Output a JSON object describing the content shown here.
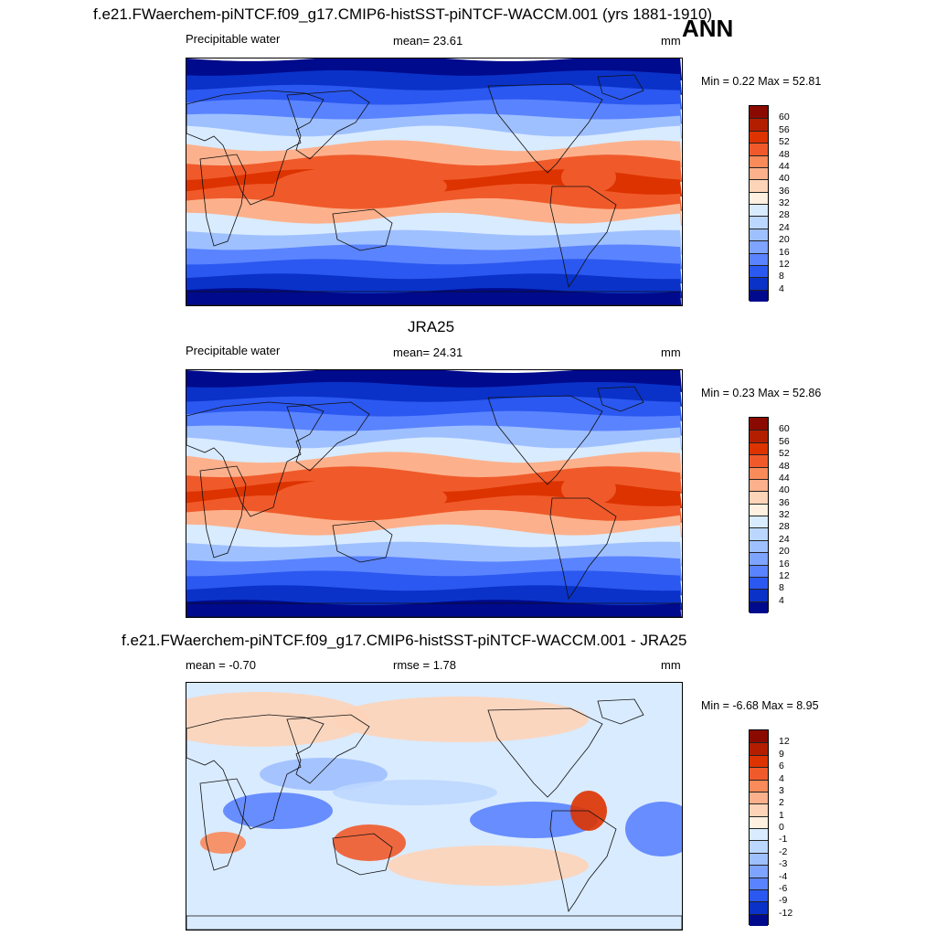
{
  "header": {
    "title": "f.e21.FWaerchem-piNTCF.f09_g17.CMIP6-histSST-piNTCF-WACCM.001 (yrs 1881-1910)",
    "season": "ANN"
  },
  "panels": [
    {
      "label_left": "Precipitable water",
      "label_center": "mean=  23.61",
      "label_right": "mm",
      "minmax": "Min =   0.22 Max =  52.81"
    },
    {
      "section_title": "JRA25",
      "label_left": "Precipitable water",
      "label_center": "mean=  24.31",
      "label_right": "mm",
      "minmax": "Min =   0.23 Max =  52.86"
    },
    {
      "section_title": "f.e21.FWaerchem-piNTCF.f09_g17.CMIP6-histSST-piNTCF-WACCM.001 - JRA25",
      "label_left": "mean =  -0.70",
      "label_center": "rmse =   1.78",
      "label_right": "mm",
      "minmax": "Min =  -6.68 Max =   8.95"
    }
  ],
  "colorbars": {
    "absolute": {
      "ticks": [
        "60",
        "56",
        "52",
        "48",
        "44",
        "40",
        "36",
        "32",
        "28",
        "24",
        "20",
        "16",
        "12",
        "8",
        "4"
      ],
      "colors": [
        "#8b0a00",
        "#b31e00",
        "#dd3300",
        "#f05a2a",
        "#f98a5a",
        "#fcb18c",
        "#fdd4b8",
        "#fff0e0",
        "#d9ebff",
        "#bcd7ff",
        "#9fc0ff",
        "#7ea4ff",
        "#5a83ff",
        "#2b58f0",
        "#0a32c8",
        "#000a8c"
      ]
    },
    "difference": {
      "ticks": [
        "12",
        "9",
        "6",
        "4",
        "3",
        "2",
        "1",
        "0",
        "-1",
        "-2",
        "-3",
        "-4",
        "-6",
        "-9",
        "-12"
      ],
      "colors": [
        "#8b0a00",
        "#b31e00",
        "#dd3300",
        "#f05a2a",
        "#f98a5a",
        "#fcb18c",
        "#fdd4b8",
        "#fff0e0",
        "#d9ebff",
        "#bcd7ff",
        "#9fc0ff",
        "#7ea4ff",
        "#5a83ff",
        "#2b58f0",
        "#0a32c8",
        "#000a8c"
      ]
    }
  },
  "field_bands": {
    "absolute": [
      "#000a8c",
      "#0a32c8",
      "#2b58f0",
      "#5a83ff",
      "#9fc0ff",
      "#d9ebff",
      "#fcb18c",
      "#f05a2a",
      "#dd3300",
      "#f05a2a",
      "#fcb18c",
      "#d9ebff",
      "#9fc0ff",
      "#5a83ff",
      "#2b58f0",
      "#0a32c8",
      "#000a8c"
    ],
    "difference_base": "#d9ebff"
  }
}
